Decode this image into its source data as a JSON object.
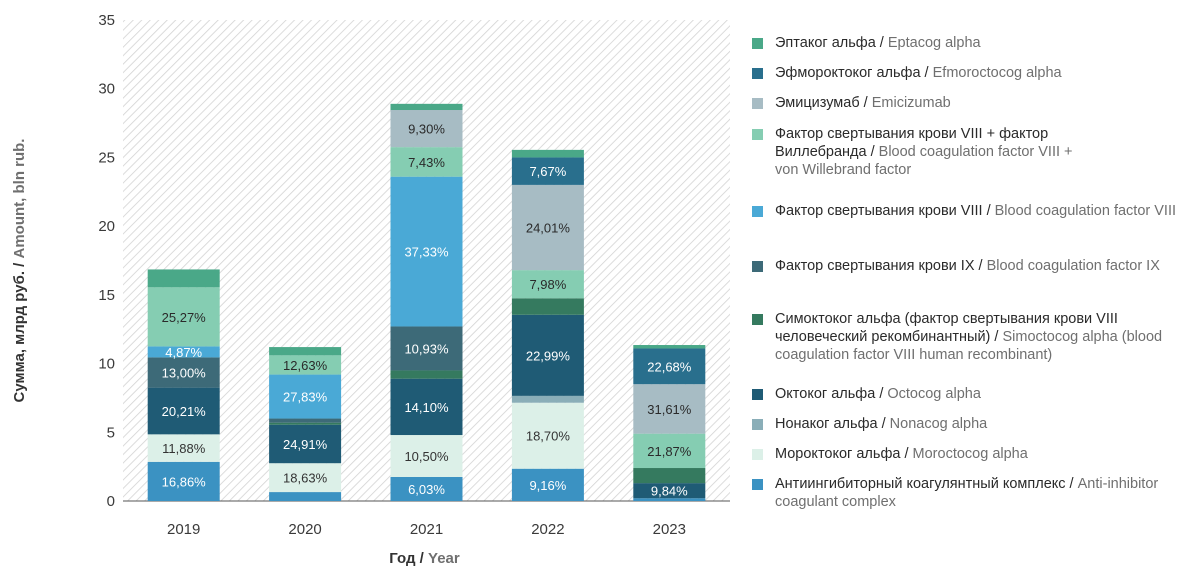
{
  "chart_data": {
    "type": "bar",
    "stacked": true,
    "categories": [
      "2019",
      "2020",
      "2021",
      "2022",
      "2023"
    ],
    "ylim": [
      0,
      35
    ],
    "yticks": [
      0,
      5,
      10,
      15,
      20,
      25,
      30,
      35
    ],
    "grid": "diagonal hatch background",
    "legend_position": "right",
    "xlabel_ru": "Год / ",
    "xlabel_en": "Year",
    "ylabel_ru": "Сумма, млрд руб. / ",
    "ylabel_en": "Amount, bln rub.",
    "series": [
      {
        "ru": "Антиингибиторный коагулянтный комплекс / ",
        "en": "Anti-inhibitor coagulant complex",
        "color": "#3b92c2",
        "text_color": "#ffffff",
        "values": [
          2.85,
          0.65,
          1.75,
          2.35,
          0.2
        ],
        "labels": [
          "16,86%",
          "",
          "6,03%",
          "9,16%",
          ""
        ]
      },
      {
        "ru": "Мороктоког альфа / ",
        "en": "Moroctocog alpha",
        "color": "#dcf0e8",
        "text_color": "#333333",
        "values": [
          2.0,
          2.1,
          3.05,
          4.8,
          0.0
        ],
        "labels": [
          "11,88%",
          "18,63%",
          "10,50%",
          "18,70%",
          ""
        ]
      },
      {
        "ru": "Нонаког альфа / ",
        "en": "Nonacog alpha",
        "color": "#8aaeb8",
        "text_color": "#ffffff",
        "values": [
          0.0,
          0.0,
          0.0,
          0.5,
          0.0
        ],
        "labels": [
          "",
          "",
          "",
          "",
          ""
        ]
      },
      {
        "ru": "Октоког альфа / ",
        "en": "Octocog alpha",
        "color": "#1f5b75",
        "text_color": "#ffffff",
        "values": [
          3.4,
          2.8,
          4.1,
          5.9,
          1.1
        ],
        "labels": [
          "20,21%",
          "24,91%",
          "14,10%",
          "22,99%",
          "9,84%"
        ]
      },
      {
        "ru": "Симоктоког альфа (фактор свертывания крови VIII человеческий рекомбинантный) / ",
        "en": "Simoctocog alpha (blood coagulation factor VIII human recombinant)",
        "color": "#357a5f",
        "text_color": "#ffffff",
        "values": [
          0.0,
          0.15,
          0.6,
          1.2,
          1.1
        ],
        "labels": [
          "",
          "",
          "",
          "",
          ""
        ]
      },
      {
        "ru": "Фактор свертывания крови IX / ",
        "en": "Blood coagulation factor IX",
        "color": "#3d6a78",
        "text_color": "#ffffff",
        "values": [
          2.2,
          0.3,
          3.2,
          0.0,
          0.0
        ],
        "labels": [
          "13,00%",
          "",
          "10,93%",
          "",
          ""
        ]
      },
      {
        "ru": "Фактор свертывания крови VIII / ",
        "en": "Blood coagulation factor VIII",
        "color": "#4aa9d6",
        "text_color": "#ffffff",
        "values": [
          0.8,
          3.2,
          10.9,
          0.0,
          0.0
        ],
        "labels": [
          "4,87%",
          "27,83%",
          "37,33%",
          "",
          ""
        ]
      },
      {
        "ru": "Фактор свертывания крови VIII + фактор Виллебранда / ",
        "en": "Blood coagulation factor VIII + von Willebrand factor",
        "color": "#85cdb2",
        "text_color": "#2a2a2a",
        "values": [
          4.3,
          1.4,
          2.15,
          2.05,
          2.5
        ],
        "labels": [
          "25,27%",
          "12,63%",
          "7,43%",
          "7,98%",
          "21,87%"
        ]
      },
      {
        "ru": "Эмицизумаб / ",
        "en": "Emicizumab",
        "color": "#a7bcc4",
        "text_color": "#2a2a2a",
        "values": [
          0.0,
          0.0,
          2.7,
          6.2,
          3.6
        ],
        "labels": [
          "",
          "",
          "9,30%",
          "24,01%",
          "31,61%"
        ]
      },
      {
        "ru": "Эфмороктоког альфа / ",
        "en": "Efmoroctocog alpha",
        "color": "#296f8d",
        "text_color": "#ffffff",
        "values": [
          0.0,
          0.0,
          0.0,
          2.0,
          2.6
        ],
        "labels": [
          "",
          "",
          "",
          "7,67%",
          "22,68%"
        ]
      },
      {
        "ru": "Эптаког альфа / ",
        "en": "Eptacog alpha",
        "color": "#4aa888",
        "text_color": "#ffffff",
        "values": [
          1.3,
          0.6,
          0.45,
          0.55,
          0.25
        ],
        "labels": [
          "",
          "",
          "",
          "",
          ""
        ]
      }
    ]
  }
}
